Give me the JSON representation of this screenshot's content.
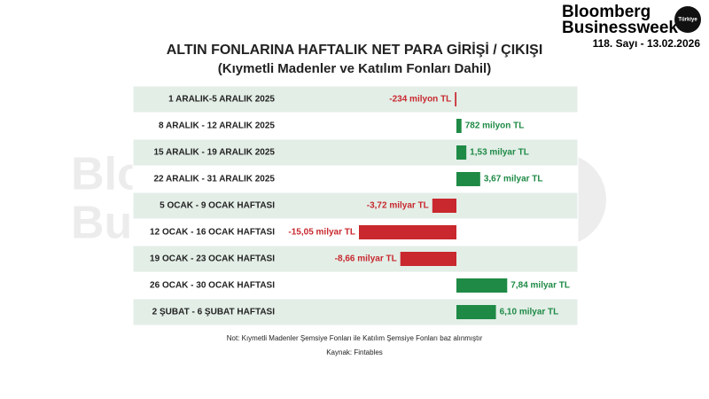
{
  "header": {
    "brand_top": "Bloomberg",
    "brand_bottom": "Businessweek",
    "badge": "Türkiye",
    "issue": "118. Sayı - 13.02.2026"
  },
  "chart_data": {
    "type": "bar",
    "orientation": "horizontal",
    "title": "ALTIN FONLARINA HAFTALIK NET PARA GİRİŞİ / ÇIKIŞI",
    "subtitle": "(Kıymetli Madenler ve Katılım Fonları Dahil)",
    "categories": [
      "1 ARALIK-5 ARALIK 2025",
      "8 ARALIK - 12 ARALIK 2025",
      "15 ARALIK - 19 ARALIK 2025",
      "22 ARALIK - 31 ARALIK 2025",
      "5 OCAK - 9 OCAK HAFTASI",
      "12 OCAK - 16 OCAK HAFTASI",
      "19 OCAK - 23 OCAK HAFTASI",
      "26 OCAK - 30 OCAK HAFTASI",
      "2 ŞUBAT - 6 ŞUBAT HAFTASI"
    ],
    "values": [
      -0.234,
      0.782,
      1.53,
      3.67,
      -3.72,
      -15.05,
      -8.66,
      7.84,
      6.1
    ],
    "value_labels": [
      "-234 milyon TL",
      "782 milyon TL",
      "1,53 milyar TL",
      "3,67 milyar TL",
      "-3,72 milyar TL",
      "-15,05 milyar TL",
      "-8,66 milyar TL",
      "7,84 milyar TL",
      "6,10 milyar TL"
    ],
    "positive_color": "#1e8a45",
    "negative_color": "#c8282e",
    "note": "Not: Kıymetli Madenler Şemsiye Fonları ile Katılım Şemsiye Fonları baz alınmıştır",
    "source": "Kaynak: Fintables"
  }
}
